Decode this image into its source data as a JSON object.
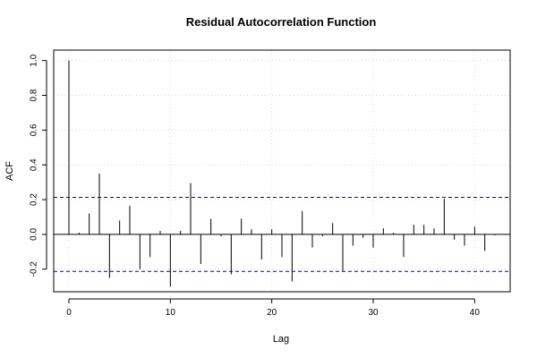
{
  "chart_data": {
    "type": "bar",
    "title": "Residual Autocorrelation Function",
    "xlabel": "Lag",
    "ylabel": "ACF",
    "xlim": [
      -1.5,
      43.5
    ],
    "ylim": [
      -0.33,
      1.06
    ],
    "xticks": [
      0,
      10,
      20,
      30,
      40
    ],
    "yticks": [
      -0.2,
      0.0,
      0.2,
      0.4,
      0.6,
      0.8,
      1.0
    ],
    "grid": true,
    "confidence_bound": 0.213,
    "confidence_color": "#0000cd",
    "lags": [
      0,
      1,
      2,
      3,
      4,
      5,
      6,
      7,
      8,
      9,
      10,
      11,
      12,
      13,
      14,
      15,
      16,
      17,
      18,
      19,
      20,
      21,
      22,
      23,
      24,
      25,
      26,
      27,
      28,
      29,
      30,
      31,
      32,
      33,
      34,
      35,
      36,
      37,
      38,
      39,
      40,
      41,
      42
    ],
    "values": [
      1.0,
      0.01,
      0.12,
      0.35,
      -0.25,
      0.08,
      0.165,
      -0.2,
      -0.13,
      0.02,
      -0.3,
      0.02,
      0.295,
      -0.17,
      0.09,
      -0.01,
      -0.23,
      0.09,
      0.03,
      -0.145,
      0.03,
      -0.13,
      -0.27,
      0.135,
      -0.075,
      -0.01,
      0.065,
      -0.21,
      -0.065,
      -0.02,
      -0.075,
      0.035,
      0.01,
      -0.13,
      0.055,
      0.055,
      0.035,
      0.205,
      -0.03,
      -0.065,
      0.045,
      -0.095,
      -0.005
    ]
  }
}
